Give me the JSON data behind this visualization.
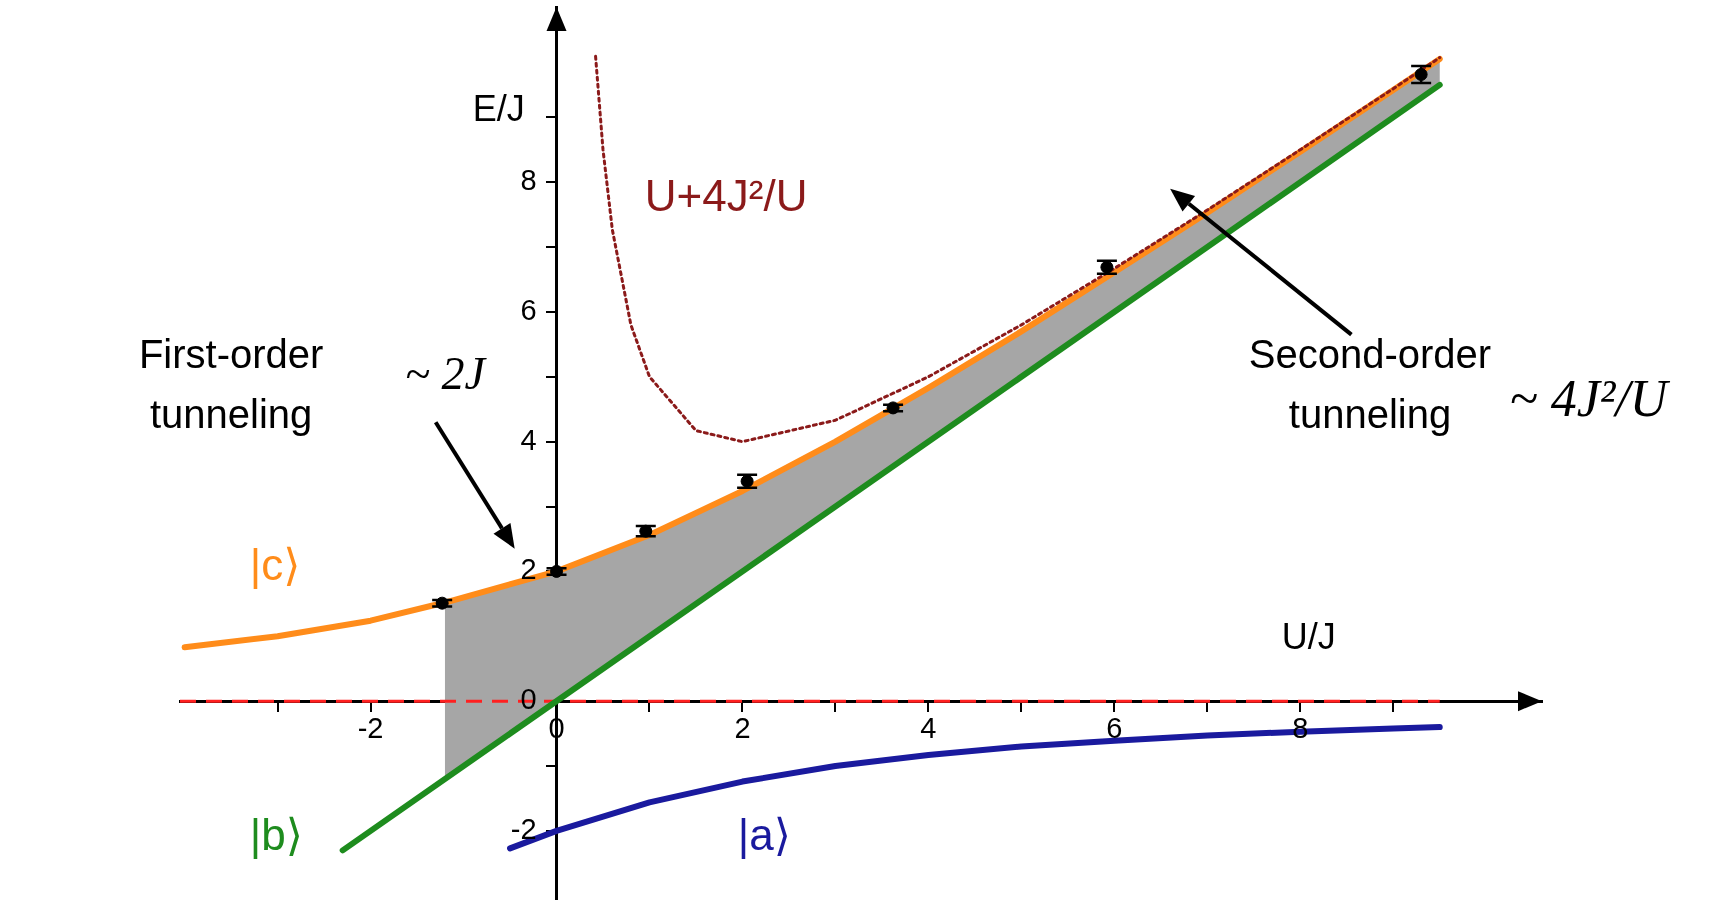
{
  "chart_data": {
    "type": "line",
    "xlabel": "U/J",
    "ylabel": "E/J",
    "xlim": [
      -4.05,
      10.6
    ],
    "ylim": [
      -3.05,
      10.7
    ],
    "xticks": [
      {
        "value": -3,
        "label": null
      },
      -2,
      {
        "value": -1,
        "label": null
      },
      0,
      {
        "value": 1,
        "label": null
      },
      2,
      {
        "value": 3,
        "label": null
      },
      4,
      {
        "value": 5,
        "label": null
      },
      6,
      {
        "value": 7,
        "label": null
      },
      8,
      {
        "value": 9,
        "label": null
      }
    ],
    "yticks": [
      -2,
      {
        "value": -1,
        "label": null
      },
      0,
      {
        "value": 1,
        "label": null
      },
      2,
      {
        "value": 3,
        "label": null
      },
      4,
      {
        "value": 5,
        "label": null
      },
      6,
      {
        "value": 7,
        "label": null
      },
      8,
      {
        "value": 9,
        "label": null
      }
    ],
    "grid": false,
    "legend": false,
    "series": [
      {
        "name": "|b⟩",
        "color": "#1e8c1e",
        "x": [
          -2.3,
          9.5
        ],
        "values": [
          -2.3,
          9.5
        ]
      },
      {
        "name": "|c⟩",
        "color": "#ff8c1a",
        "x": [
          -4,
          -3,
          -2,
          -1.2,
          0,
          1,
          2,
          3,
          4,
          5,
          6,
          7,
          8,
          9,
          9.5
        ],
        "values": [
          0.83,
          1,
          1.24,
          1.52,
          2,
          2.56,
          3.24,
          4,
          4.83,
          5.7,
          6.61,
          7.53,
          8.47,
          9.42,
          9.9
        ],
        "lower": [
          null,
          null,
          null,
          -1.2,
          0,
          1,
          2,
          3,
          4,
          5,
          6,
          7,
          8,
          9,
          9.5
        ],
        "upper": [
          null,
          null,
          null,
          1.52,
          2,
          2.56,
          3.24,
          4,
          4.83,
          5.7,
          6.61,
          7.53,
          8.47,
          9.42,
          9.9
        ]
      },
      {
        "name": "|a⟩",
        "color": "#1a1a9e",
        "x": [
          -0.5,
          0,
          1,
          2,
          3,
          4,
          5,
          6,
          7,
          8,
          9,
          9.5
        ],
        "values": [
          -2.27,
          -2,
          -1.56,
          -1.24,
          -1,
          -0.83,
          -0.7,
          -0.61,
          -0.53,
          -0.47,
          -0.42,
          -0.4
        ]
      },
      {
        "name": "U+4J²/U",
        "color": "#8b1a1a",
        "line_style": "dotted",
        "x": [
          0.42,
          0.5,
          0.6,
          0.8,
          1,
          1.5,
          2,
          3,
          4,
          5,
          6,
          7,
          8,
          9,
          9.5
        ],
        "values": [
          9.94,
          8.5,
          7.27,
          5.8,
          5,
          4.17,
          4,
          4.33,
          5,
          5.8,
          6.67,
          7.57,
          8.5,
          9.44,
          9.92
        ]
      },
      {
        "type": "scatter",
        "marker": "circle",
        "color": "#000000",
        "x": [
          -1.23,
          0,
          0.96,
          2.05,
          3.62,
          5.92,
          9.3
        ],
        "values": [
          1.51,
          2,
          2.62,
          3.39,
          4.52,
          6.69,
          9.66
        ],
        "errors": [
          0.05,
          0.05,
          0.08,
          0.1,
          0.05,
          0.1,
          0.13
        ]
      }
    ],
    "ref_lines": [
      {
        "axis": "y",
        "value": 0,
        "color": "#ff2020",
        "line_style": "dashed"
      }
    ],
    "annotations": [
      "First-order tunneling",
      "~ 2J",
      "Second-order tunneling",
      "~ 4J²/U"
    ]
  }
}
